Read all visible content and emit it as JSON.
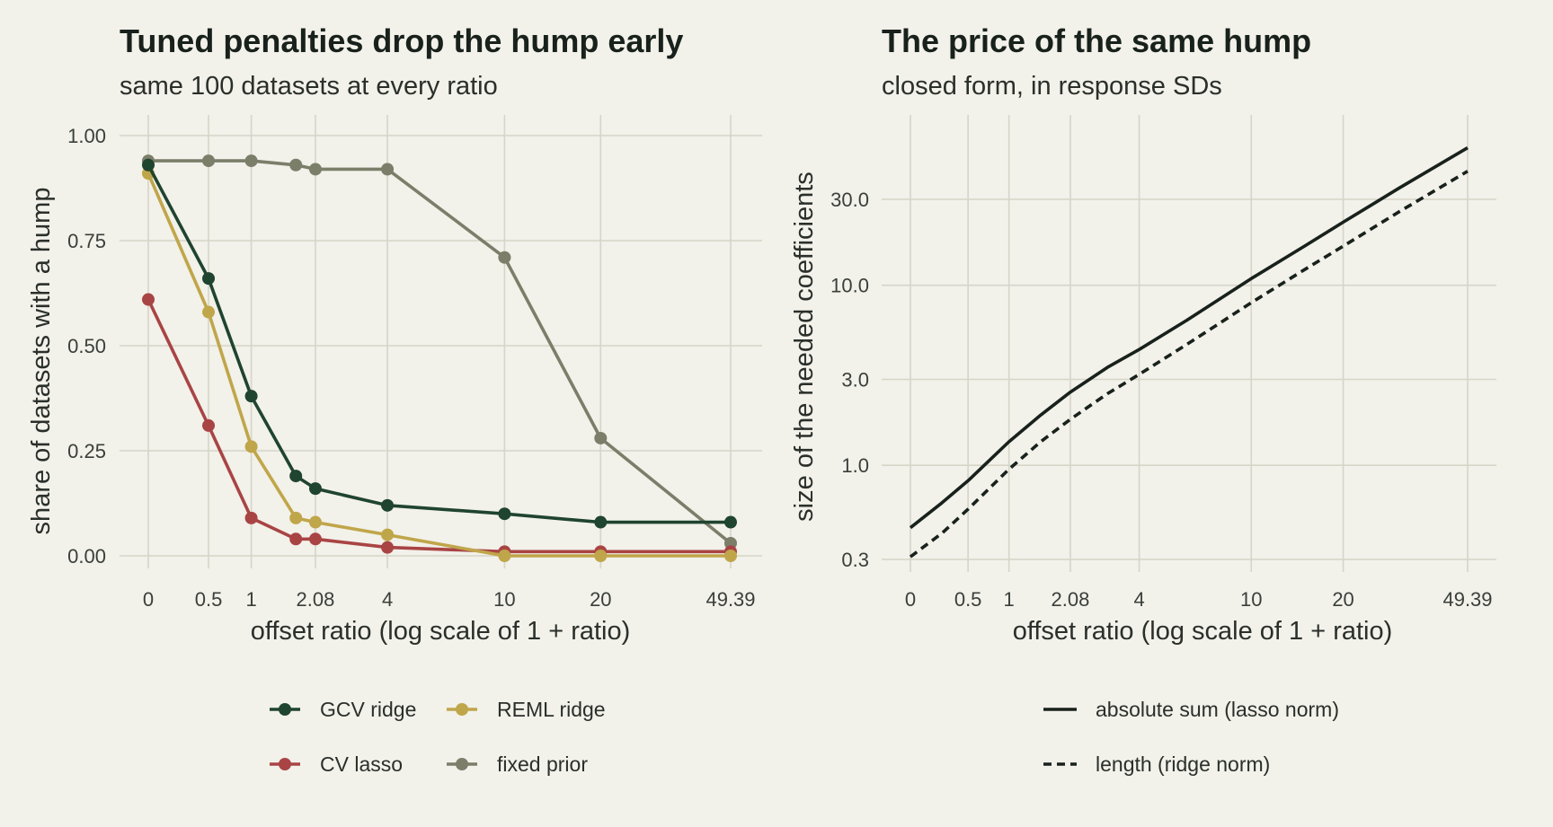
{
  "colors": {
    "background": "#f2f1ea",
    "grid": "#d6d5c8",
    "gcv_ridge": "#1f4430",
    "cv_lasso": "#a94444",
    "reml_ridge": "#c0a64a",
    "fixed_prior": "#7b7e69",
    "norm_lines": "#18211b"
  },
  "chart_data": [
    {
      "type": "line",
      "title": "Tuned penalties drop the hump early",
      "subtitle": "same 100 datasets at every ratio",
      "xlabel": "offset ratio (log scale of 1 + ratio)",
      "ylabel": "share of datasets with a hump",
      "x_scale": "log(1 + ratio)",
      "xlim": [
        0,
        49.39
      ],
      "ylim": [
        0,
        1
      ],
      "x_ticks": [
        0,
        0.5,
        1,
        2.08,
        4,
        10,
        20,
        49.39
      ],
      "x_tick_labels": [
        "0",
        "0.5",
        "1",
        "2.08",
        "4",
        "10",
        "20",
        "49.39"
      ],
      "y_ticks": [
        0,
        0.25,
        0.5,
        0.75,
        1
      ],
      "y_tick_labels": [
        "0.00",
        "0.25",
        "0.50",
        "0.75",
        "1.00"
      ],
      "grid": true,
      "legend_position": "bottom",
      "x": [
        0,
        0.5,
        1,
        1.7,
        2.08,
        4,
        10,
        20,
        49.39
      ],
      "series": [
        {
          "name": "GCV ridge",
          "color_key": "gcv_ridge",
          "values": [
            0.93,
            0.66,
            0.38,
            0.19,
            0.16,
            0.12,
            0.1,
            0.08,
            0.08
          ]
        },
        {
          "name": "CV lasso",
          "color_key": "cv_lasso",
          "values": [
            0.61,
            0.31,
            0.09,
            0.04,
            0.04,
            0.02,
            0.01,
            0.01,
            0.01
          ]
        },
        {
          "name": "REML ridge",
          "color_key": "reml_ridge",
          "values": [
            0.91,
            0.58,
            0.26,
            0.09,
            0.08,
            0.05,
            0.0,
            0.0,
            0.0
          ]
        },
        {
          "name": "fixed prior",
          "color_key": "fixed_prior",
          "values": [
            0.94,
            0.94,
            0.94,
            0.93,
            0.92,
            0.92,
            0.71,
            0.28,
            0.03
          ]
        }
      ],
      "legend_order": [
        "GCV ridge",
        "REML ridge",
        "CV lasso",
        "fixed prior"
      ]
    },
    {
      "type": "line",
      "title": "The price of the same hump",
      "subtitle": "closed form, in response SDs",
      "xlabel": "offset ratio (log scale of 1 + ratio)",
      "ylabel": "size of the needed coefficients",
      "x_scale": "log(1 + ratio)",
      "y_scale": "log",
      "xlim": [
        0,
        49.39
      ],
      "x_ticks": [
        0,
        0.5,
        1,
        2.08,
        4,
        10,
        20,
        49.39
      ],
      "x_tick_labels": [
        "0",
        "0.5",
        "1",
        "2.08",
        "4",
        "10",
        "20",
        "49.39"
      ],
      "y_ticks": [
        0.3,
        1,
        3,
        10,
        30
      ],
      "y_tick_labels": [
        "0.3",
        "1.0",
        "3.0",
        "10.0",
        "30.0"
      ],
      "grid": true,
      "legend_position": "bottom",
      "series": [
        {
          "name": "absolute sum (lasso norm)",
          "dash": "solid",
          "x": [
            0,
            0.25,
            0.5,
            1,
            1.5,
            2.08,
            3,
            4,
            6,
            10,
            15,
            20,
            30,
            49.39
          ],
          "values": [
            0.45,
            0.62,
            0.82,
            1.35,
            1.9,
            2.55,
            3.5,
            4.4,
            6.4,
            10.9,
            16.5,
            22.4,
            34.5,
            58.0
          ]
        },
        {
          "name": "length (ridge norm)",
          "dash": "dashed",
          "x": [
            0,
            0.25,
            0.5,
            1,
            1.5,
            2.08,
            3,
            4,
            6,
            10,
            15,
            20,
            30,
            49.39
          ],
          "values": [
            0.31,
            0.42,
            0.57,
            0.95,
            1.35,
            1.8,
            2.5,
            3.2,
            4.7,
            8.0,
            12.2,
            16.5,
            25.5,
            43.0
          ]
        }
      ]
    }
  ]
}
